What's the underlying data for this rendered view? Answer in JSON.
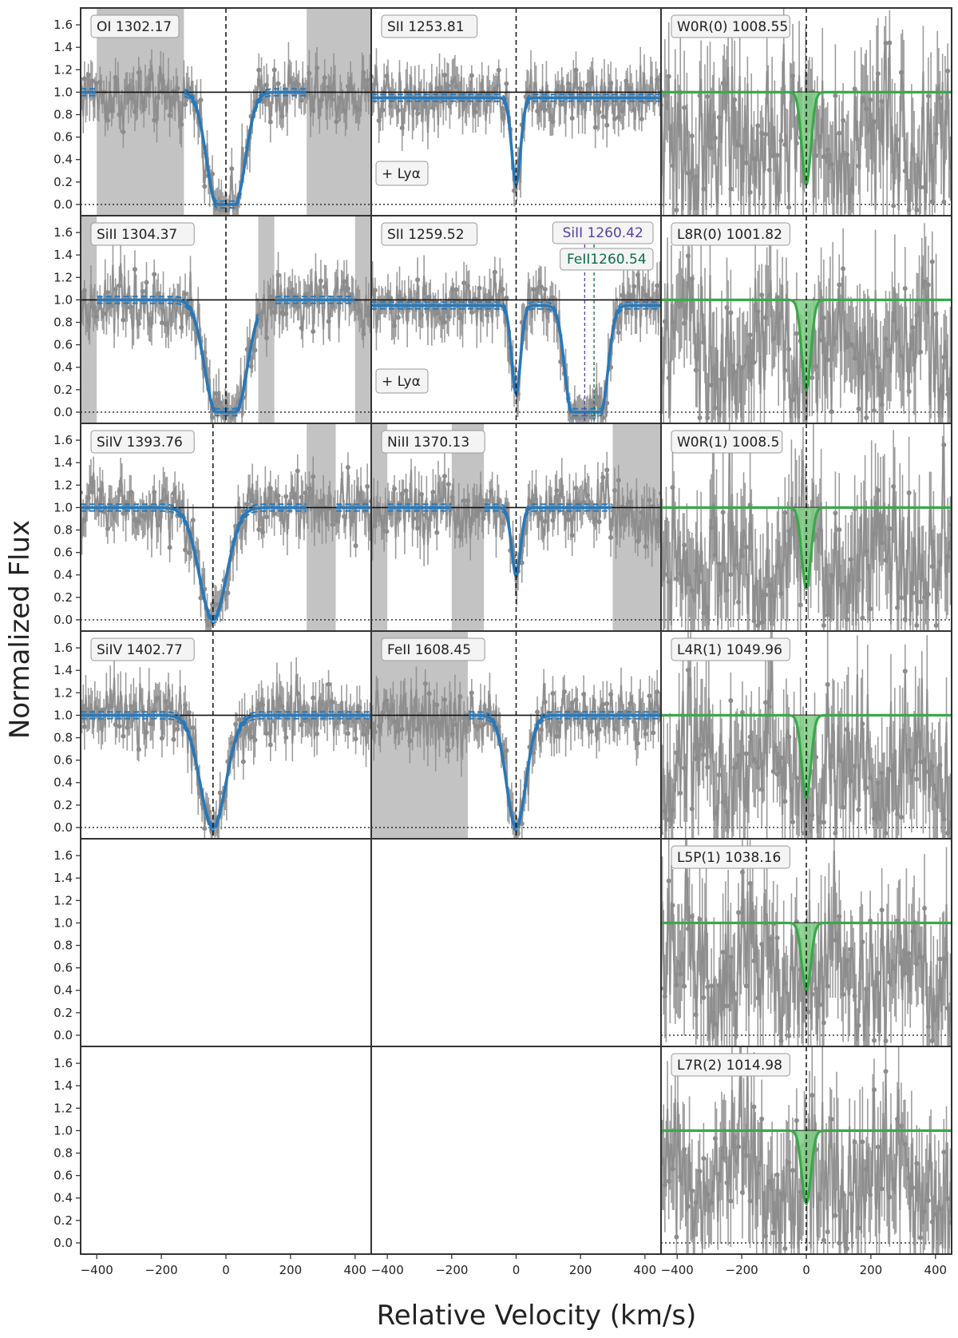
{
  "figure": {
    "xlabel": "Relative Velocity (km/s)",
    "ylabel": "Normalized Flux"
  },
  "chart_data": {
    "type": "line",
    "layout": {
      "rows": 6,
      "cols": 3
    },
    "xlim": [
      -450,
      450
    ],
    "ylim": [
      -0.1,
      1.75
    ],
    "xticks": [
      -400,
      -200,
      0,
      200,
      400
    ],
    "yticks": [
      0.0,
      0.2,
      0.4,
      0.6,
      0.8,
      1.0,
      1.2,
      1.4,
      1.6
    ],
    "colors": {
      "fit": "#2878b8",
      "h2_fit": "#3aa84a",
      "h2_fill": "#7fcf85",
      "data": "#8c8c8c",
      "mask": "#bdbdbd",
      "SiII_1260": "#5a3fa0",
      "FeII_1260": "#0f6b4a"
    },
    "panels": [
      {
        "row": 0,
        "col": 0,
        "label": "OI 1302.17",
        "kind": "metal",
        "center": 0,
        "depth": 1.0,
        "width": 32,
        "plateau": 28,
        "masks": [
          [
            -400,
            -130
          ],
          [
            250,
            450
          ]
        ]
      },
      {
        "row": 0,
        "col": 1,
        "label": "SII 1253.81",
        "kind": "metal",
        "note": "+ Lyα",
        "continuum": 0.95,
        "center": 0,
        "depth": 0.8,
        "width": 14,
        "masks": []
      },
      {
        "row": 0,
        "col": 2,
        "label": "W0R(0) 1008.55",
        "kind": "h2",
        "center": 0,
        "depth": 0.82,
        "width": 14
      },
      {
        "row": 1,
        "col": 0,
        "label": "SiII 1304.37",
        "kind": "metal",
        "center": 0,
        "depth": 1.0,
        "width": 36,
        "plateau": 30,
        "masks": [
          [
            -450,
            -400
          ],
          [
            100,
            150
          ],
          [
            400,
            450
          ]
        ]
      },
      {
        "row": 1,
        "col": 1,
        "label": "SII 1259.52",
        "kind": "metal",
        "note": "+ Lyα",
        "continuum": 0.95,
        "center": 0,
        "depth": 0.82,
        "width": 14,
        "second": {
          "center": 218,
          "depth": 1.0,
          "width": 22,
          "plateau": 45
        },
        "markers": [
          {
            "label": "SiII 1260.42",
            "velocity": 213,
            "color": "#5a3fa0"
          },
          {
            "label": "FeII1260.54",
            "velocity": 242,
            "color": "#0f6b4a"
          }
        ],
        "masks": []
      },
      {
        "row": 1,
        "col": 2,
        "label": "L8R(0) 1001.82",
        "kind": "h2",
        "center": 0,
        "depth": 0.8,
        "width": 14
      },
      {
        "row": 2,
        "col": 0,
        "label": "SiIV 1393.76",
        "kind": "metal",
        "center": -40,
        "depth": 1.0,
        "width": 42,
        "masks": [
          [
            250,
            340
          ]
        ]
      },
      {
        "row": 2,
        "col": 1,
        "label": "NiII 1370.13",
        "kind": "metal",
        "center": 0,
        "depth": 0.6,
        "width": 14,
        "masks": [
          [
            -450,
            -400
          ],
          [
            -200,
            -100
          ],
          [
            300,
            450
          ]
        ]
      },
      {
        "row": 2,
        "col": 2,
        "label": "W0R(1) 1008.5",
        "kind": "h2",
        "center": 0,
        "depth": 0.72,
        "width": 14
      },
      {
        "row": 3,
        "col": 0,
        "label": "SiIV 1402.77",
        "kind": "metal",
        "center": -40,
        "depth": 1.0,
        "width": 40,
        "masks": []
      },
      {
        "row": 3,
        "col": 1,
        "label": "FeII 1608.45",
        "kind": "metal",
        "center": 0,
        "depth": 1.0,
        "width": 30,
        "masks": [
          [
            -450,
            -150
          ]
        ]
      },
      {
        "row": 3,
        "col": 2,
        "label": "L4R(1) 1049.96",
        "kind": "h2",
        "center": 0,
        "depth": 0.74,
        "width": 14
      },
      {
        "row": 4,
        "col": 2,
        "label": "L5P(1) 1038.16",
        "kind": "h2",
        "center": 0,
        "depth": 0.6,
        "width": 14
      },
      {
        "row": 5,
        "col": 2,
        "label": "L7R(2) 1014.98",
        "kind": "h2",
        "center": 0,
        "depth": 0.65,
        "width": 14
      }
    ]
  }
}
